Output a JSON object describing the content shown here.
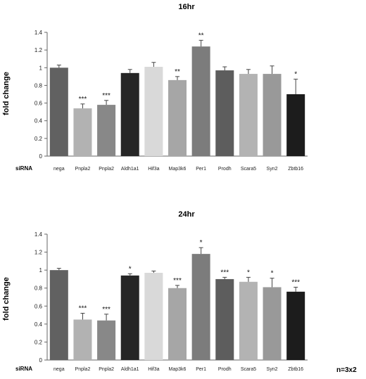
{
  "chart_data": [
    {
      "type": "bar",
      "title": "16hr",
      "ylabel": "fold change",
      "xlabel": "",
      "row_label": "siRNA",
      "ylim": [
        0,
        1.4
      ],
      "yticks": [
        "0",
        "0.2",
        "0.4",
        "0.6",
        "0.8",
        "1",
        "1.2",
        "1.4"
      ],
      "categories": [
        "nega",
        "Pnpla2",
        "Pnpla2",
        "Aldh1a1",
        "Hif3a",
        "Map3k6",
        "Per1",
        "Prodh",
        "Scara5",
        "Syn2",
        "Zbtb16"
      ],
      "values": [
        1.0,
        0.54,
        0.58,
        0.94,
        1.01,
        0.86,
        1.24,
        0.97,
        0.93,
        0.93,
        0.7
      ],
      "errors": [
        0.03,
        0.05,
        0.05,
        0.04,
        0.05,
        0.04,
        0.07,
        0.04,
        0.05,
        0.09,
        0.17
      ],
      "significance": [
        "",
        "***",
        "***",
        "",
        "",
        "**",
        "**",
        "",
        "",
        "",
        "*"
      ],
      "colors": [
        "#616161",
        "#b2b2b2",
        "#888888",
        "#262626",
        "#d9d9d9",
        "#a6a6a6",
        "#7c7c7c",
        "#5d5d5d",
        "#b3b3b3",
        "#999999",
        "#1c1c1c"
      ],
      "grid": false
    },
    {
      "type": "bar",
      "title": "24hr",
      "ylabel": "fold change",
      "xlabel": "",
      "row_label": "siRNA",
      "ylim": [
        0,
        1.4
      ],
      "yticks": [
        "0",
        "0.2",
        "0.4",
        "0.6",
        "0.8",
        "1",
        "1.2",
        "1.4"
      ],
      "categories": [
        "nega",
        "Pnpla2",
        "Pnpla2",
        "Aldh1a1",
        "Hif3a",
        "Map3k6",
        "Per1",
        "Prodh",
        "Scara5",
        "Syn2",
        "Zbtb16"
      ],
      "values": [
        1.0,
        0.45,
        0.44,
        0.94,
        0.97,
        0.8,
        1.18,
        0.9,
        0.87,
        0.81,
        0.76
      ],
      "errors": [
        0.02,
        0.07,
        0.07,
        0.02,
        0.02,
        0.03,
        0.07,
        0.02,
        0.05,
        0.1,
        0.05
      ],
      "significance": [
        "",
        "***",
        "***",
        "*",
        "",
        "***",
        "*",
        "***",
        "*",
        "*",
        "***"
      ],
      "colors": [
        "#616161",
        "#b2b2b2",
        "#888888",
        "#262626",
        "#d9d9d9",
        "#a6a6a6",
        "#7c7c7c",
        "#5d5d5d",
        "#b3b3b3",
        "#999999",
        "#1c1c1c"
      ],
      "grid": false
    }
  ],
  "note": "n=3x2"
}
